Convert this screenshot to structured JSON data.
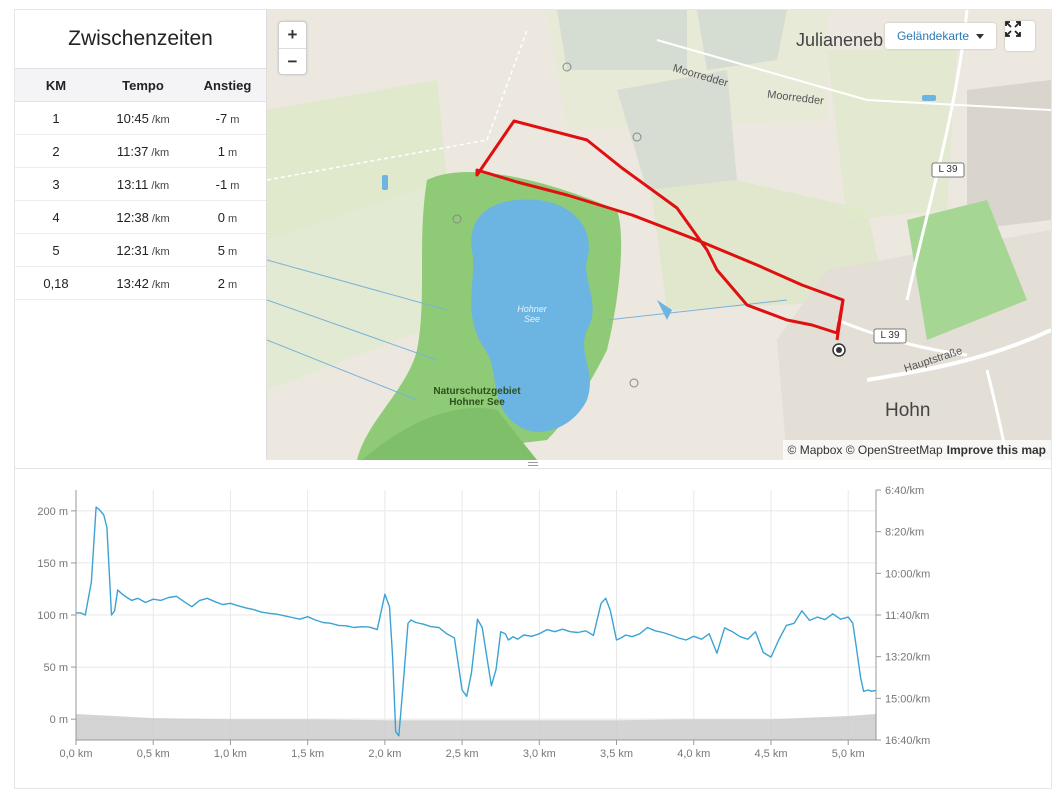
{
  "splits": {
    "title": "Zwischenzeiten",
    "columns": [
      "KM",
      "Tempo",
      "Anstieg"
    ],
    "rows": [
      {
        "km": "1",
        "pace": "10:45",
        "pace_unit": "/km",
        "elev": "-7",
        "elev_unit": "m"
      },
      {
        "km": "2",
        "pace": "11:37",
        "pace_unit": "/km",
        "elev": "1",
        "elev_unit": "m"
      },
      {
        "km": "3",
        "pace": "13:11",
        "pace_unit": "/km",
        "elev": "-1",
        "elev_unit": "m"
      },
      {
        "km": "4",
        "pace": "12:38",
        "pace_unit": "/km",
        "elev": "0",
        "elev_unit": "m"
      },
      {
        "km": "5",
        "pace": "12:31",
        "pace_unit": "/km",
        "elev": "5",
        "elev_unit": "m"
      },
      {
        "km": "0,18",
        "pace": "13:42",
        "pace_unit": "/km",
        "elev": "2",
        "elev_unit": "m"
      }
    ]
  },
  "map": {
    "zoom_in": "+",
    "zoom_out": "−",
    "map_type": "Geländekarte",
    "labels": {
      "place_1": "Julianeneb",
      "place_2": "Hohn",
      "street_1": "Moorredder",
      "street_2": "Moorredder",
      "street_3": "Hauptstraße",
      "road_1": "L 39",
      "road_2": "L 39",
      "lake": "Hohner See",
      "reserve": "Naturschutzgebiet Hohner See"
    },
    "attribution_1": "© Mapbox",
    "attribution_2": "© OpenStreetMap",
    "attribution_link": "Improve this map",
    "route_color": "#e01010",
    "water_color": "#6cb4e2",
    "forest_color": "#8fcb76"
  },
  "chart_data": {
    "type": "line",
    "x_tick_labels": [
      "0,0 km",
      "0,5 km",
      "1,0 km",
      "1,5 km",
      "2,0 km",
      "2,5 km",
      "3,0 km",
      "3,5 km",
      "4,0 km",
      "4,5 km",
      "5,0 km"
    ],
    "y_left_tick_labels": [
      "200 m",
      "150 m",
      "100 m",
      "50 m",
      "0 m"
    ],
    "y_right_tick_labels": [
      "6:40/km",
      "8:20/km",
      "10:00/km",
      "11:40/km",
      "13:20/km",
      "15:00/km",
      "16:40/km"
    ],
    "x_range_km": [
      0,
      5.18
    ],
    "pace_range_sec": [
      400,
      1000
    ],
    "series": [
      {
        "type": "line",
        "color": "#3aa3d4",
        "x_km": [
          0,
          0.03,
          0.06,
          0.1,
          0.13,
          0.15,
          0.18,
          0.2,
          0.23,
          0.25,
          0.27,
          0.3,
          0.33,
          0.36,
          0.4,
          0.45,
          0.5,
          0.55,
          0.6,
          0.65,
          0.7,
          0.75,
          0.8,
          0.85,
          0.9,
          0.95,
          1.0,
          1.05,
          1.1,
          1.15,
          1.2,
          1.25,
          1.3,
          1.35,
          1.4,
          1.45,
          1.5,
          1.55,
          1.6,
          1.65,
          1.7,
          1.75,
          1.8,
          1.85,
          1.9,
          1.95,
          2.0,
          2.03,
          2.05,
          2.07,
          2.09,
          2.12,
          2.15,
          2.17,
          2.2,
          2.25,
          2.3,
          2.35,
          2.4,
          2.45,
          2.5,
          2.53,
          2.56,
          2.6,
          2.63,
          2.66,
          2.69,
          2.72,
          2.75,
          2.78,
          2.8,
          2.83,
          2.86,
          2.9,
          2.95,
          3.0,
          3.05,
          3.1,
          3.15,
          3.2,
          3.25,
          3.3,
          3.35,
          3.4,
          3.43,
          3.46,
          3.5,
          3.53,
          3.56,
          3.6,
          3.65,
          3.7,
          3.75,
          3.8,
          3.85,
          3.9,
          3.95,
          4.0,
          4.05,
          4.1,
          4.15,
          4.2,
          4.25,
          4.3,
          4.35,
          4.4,
          4.45,
          4.5,
          4.55,
          4.6,
          4.65,
          4.7,
          4.75,
          4.8,
          4.85,
          4.9,
          4.95,
          5.0,
          5.03,
          5.05,
          5.08,
          5.1,
          5.13,
          5.15,
          5.18
        ],
        "pace_sec": [
          695,
          695,
          700,
          620,
          441,
          447,
          460,
          490,
          700,
          690,
          640,
          650,
          658,
          665,
          660,
          670,
          662,
          665,
          658,
          655,
          668,
          680,
          665,
          660,
          668,
          675,
          672,
          678,
          683,
          687,
          693,
          696,
          698,
          702,
          706,
          710,
          704,
          712,
          718,
          720,
          725,
          726,
          730,
          728,
          729,
          735,
          650,
          680,
          800,
          980,
          990,
          860,
          720,
          712,
          718,
          722,
          728,
          730,
          745,
          755,
          880,
          895,
          840,
          710,
          730,
          800,
          870,
          830,
          740,
          745,
          760,
          752,
          758,
          748,
          751,
          745,
          735,
          740,
          734,
          740,
          742,
          738,
          749,
          672,
          660,
          690,
          760,
          755,
          748,
          752,
          745,
          730,
          738,
          742,
          748,
          755,
          760,
          751,
          758,
          745,
          792,
          731,
          740,
          752,
          758,
          740,
          790,
          801,
          760,
          725,
          720,
          690,
          713,
          705,
          711,
          697,
          710,
          705,
          720,
          770,
          850,
          883,
          880,
          883,
          881
        ]
      },
      {
        "type": "area",
        "name": "",
        "color": "#cccccc",
        "x_km": [
          0,
          0.5,
          1.0,
          1.5,
          2.0,
          2.5,
          3.0,
          3.5,
          4.0,
          4.5,
          5.0,
          5.18
        ],
        "elev_m": [
          5,
          1,
          0,
          0,
          -1,
          -1,
          -1,
          -1,
          0,
          0,
          3,
          5
        ]
      }
    ],
    "elev_range_m": [
      -20,
      220
    ]
  }
}
